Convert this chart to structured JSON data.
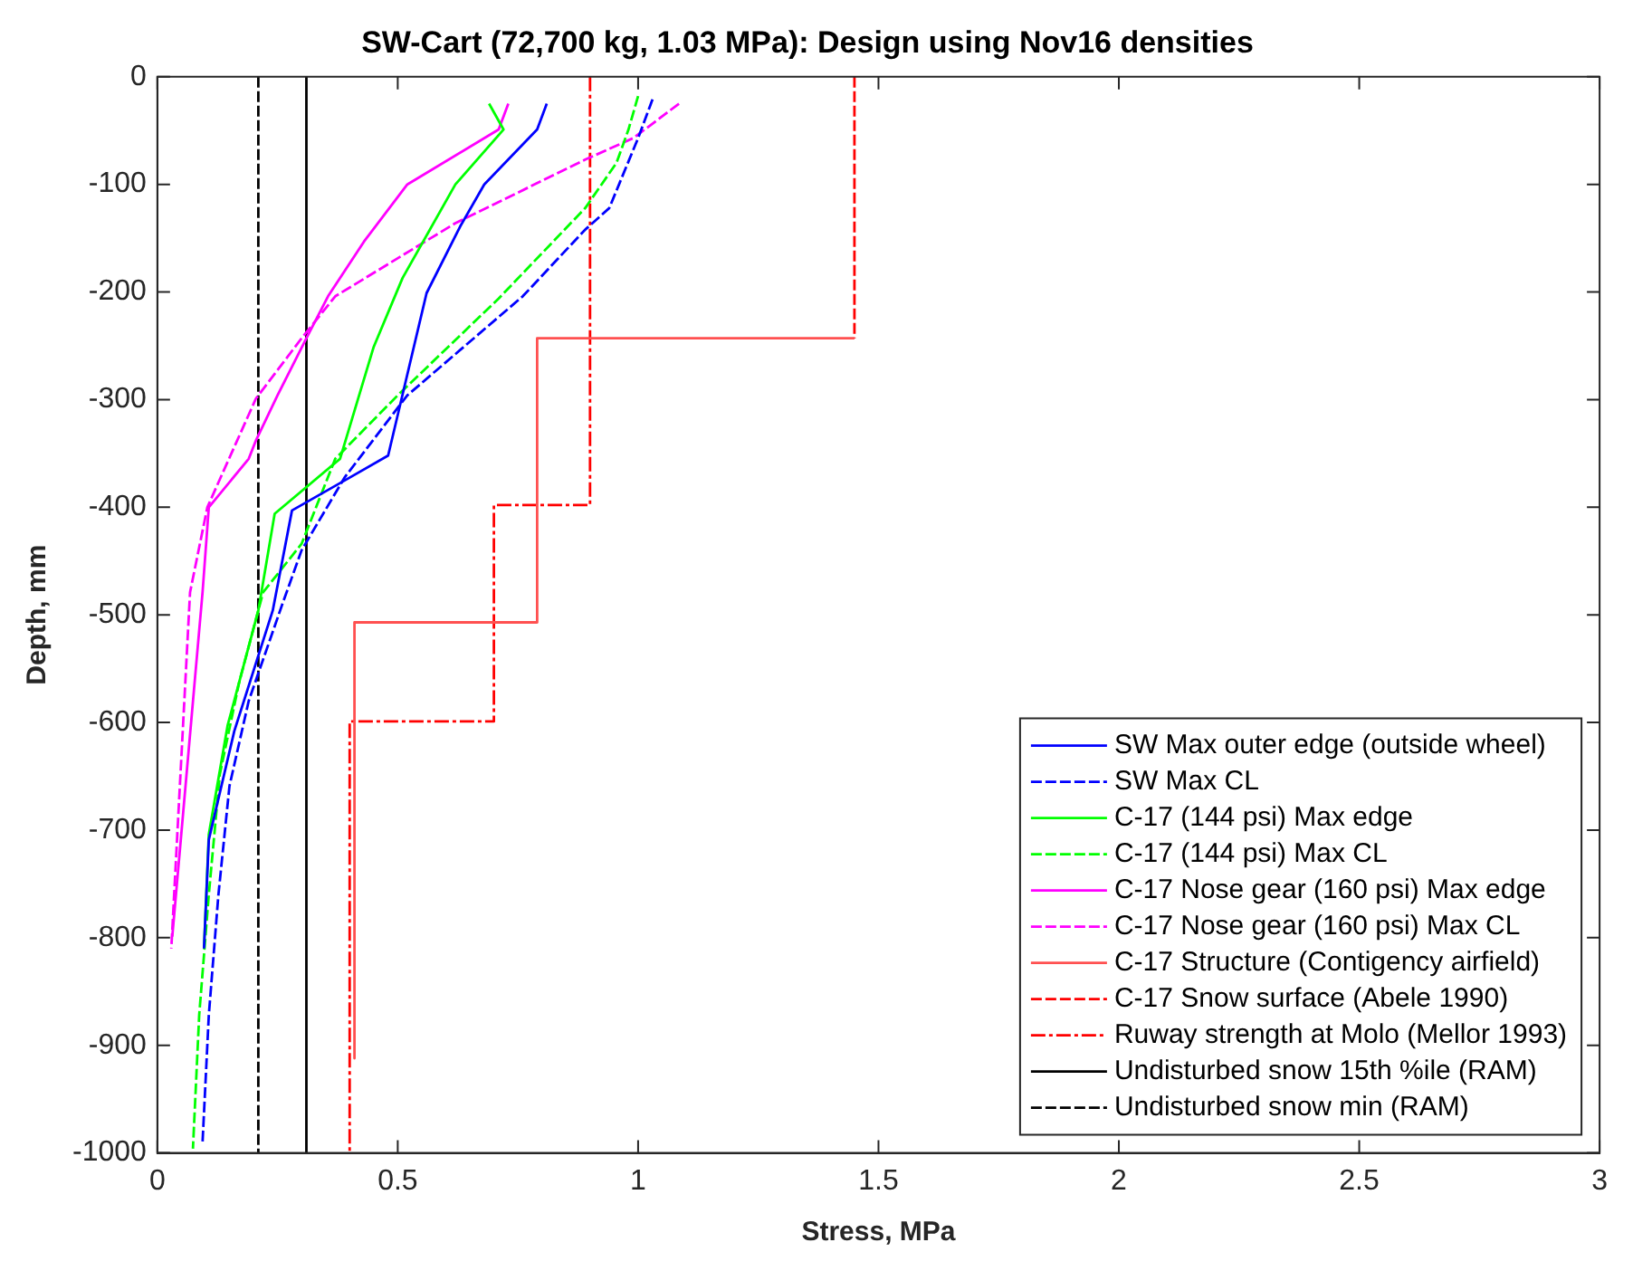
{
  "chart_data": {
    "type": "line",
    "title": "SW-Cart (72,700 kg, 1.03 MPa): Design using Nov16 densities",
    "xlabel": "Stress, MPa",
    "ylabel": "Depth, mm",
    "xlim": [
      0,
      3
    ],
    "xticks": [
      0,
      0.5,
      1,
      1.5,
      2,
      2.5,
      3
    ],
    "ylim": [
      -1000,
      0
    ],
    "yticks": [
      -1000,
      -900,
      -800,
      -700,
      -600,
      -500,
      -400,
      -300,
      -200,
      -100,
      0
    ],
    "grid": false,
    "legend": "bottom right",
    "marker": "none",
    "series": [
      {
        "name": "SW Max outer edge (outside wheel)",
        "color": "#0000ff",
        "line_style": "solid",
        "x": [
          0.81,
          0.79,
          0.68,
          0.63,
          0.56,
          0.48,
          0.39,
          0.28,
          0.24,
          0.16,
          0.107,
          0.097
        ],
        "values": [
          -25,
          -49,
          -100,
          -139,
          -201,
          -352,
          -375,
          -403,
          -496,
          -608,
          -709,
          -810
        ]
      },
      {
        "name": "SW Max CL",
        "color": "#0000ff",
        "line_style": "dashed",
        "x": [
          1.03,
          1.0,
          0.94,
          0.89,
          0.76,
          0.52,
          0.39,
          0.3,
          0.26,
          0.19,
          0.15,
          0.127,
          0.107,
          0.094
        ],
        "values": [
          -21,
          -57,
          -122,
          -142,
          -204,
          -296,
          -372,
          -440,
          -490,
          -580,
          -659,
          -760,
          -872,
          -990
        ]
      },
      {
        "name": "C-17 (144 psi) Max edge",
        "color": "#00ff00",
        "line_style": "solid",
        "x": [
          0.69,
          0.72,
          0.62,
          0.51,
          0.45,
          0.38,
          0.244,
          0.21,
          0.146,
          0.107,
          0.097
        ],
        "values": [
          -25,
          -49,
          -100,
          -187,
          -251,
          -355,
          -406,
          -496,
          -603,
          -704,
          -810
        ]
      },
      {
        "name": "C-17 (144 psi) Max CL",
        "color": "#00ff00",
        "line_style": "dashed",
        "x": [
          1.0,
          0.98,
          0.955,
          0.89,
          0.71,
          0.5,
          0.37,
          0.3,
          0.22,
          0.17,
          0.13,
          0.107,
          0.087,
          0.074
        ],
        "values": [
          -18,
          -49,
          -80,
          -122,
          -206,
          -296,
          -355,
          -434,
          -479,
          -563,
          -648,
          -760,
          -872,
          -996
        ]
      },
      {
        "name": "C-17 Nose gear (160 psi) Max edge",
        "color": "#ff00ff",
        "line_style": "solid",
        "x": [
          0.73,
          0.71,
          0.52,
          0.43,
          0.355,
          0.31,
          0.25,
          0.205,
          0.19,
          0.107,
          0.094,
          0.031
        ],
        "values": [
          -25,
          -49,
          -100,
          -153,
          -204,
          -243,
          -296,
          -338,
          -355,
          -400,
          -479,
          -799
        ]
      },
      {
        "name": "C-17 Nose gear (160 psi) Max CL",
        "color": "#ff00ff",
        "line_style": "dashed",
        "x": [
          1.085,
          0.99,
          0.89,
          0.62,
          0.37,
          0.3,
          0.205,
          0.104,
          0.068,
          0.029
        ],
        "values": [
          -25,
          -57,
          -77,
          -136,
          -204,
          -243,
          -299,
          -400,
          -479,
          -810
        ]
      },
      {
        "name": "C-17 Structure (Contigency airfield)",
        "color": "#ff5050",
        "line_style": "solid",
        "x": [
          1.45,
          0.79,
          0.79,
          0.41,
          0.41
        ],
        "values": [
          -243,
          -243,
          -507,
          -507,
          -912
        ]
      },
      {
        "name": "C-17 Snow surface (Abele 1990)",
        "color": "#ff0000",
        "line_style": "dashed",
        "x": [
          1.45,
          1.45
        ],
        "values": [
          0,
          -243
        ]
      },
      {
        "name": "Ruway strength at Molo (Mellor 1993)",
        "color": "#ff0000",
        "line_style": "dashdot",
        "x": [
          0.9,
          0.9,
          0.7,
          0.7,
          0.4,
          0.4
        ],
        "values": [
          0,
          -398,
          -398,
          -599,
          -599,
          -1000
        ]
      },
      {
        "name": "Undisturbed snow 15th %ile (RAM)",
        "color": "#000000",
        "line_style": "solid",
        "x": [
          0.31,
          0.31
        ],
        "values": [
          0,
          -1000
        ]
      },
      {
        "name": "Undisturbed snow min (RAM)",
        "color": "#000000",
        "line_style": "dashed",
        "x": [
          0.21,
          0.21
        ],
        "values": [
          0,
          -1000
        ]
      }
    ]
  }
}
